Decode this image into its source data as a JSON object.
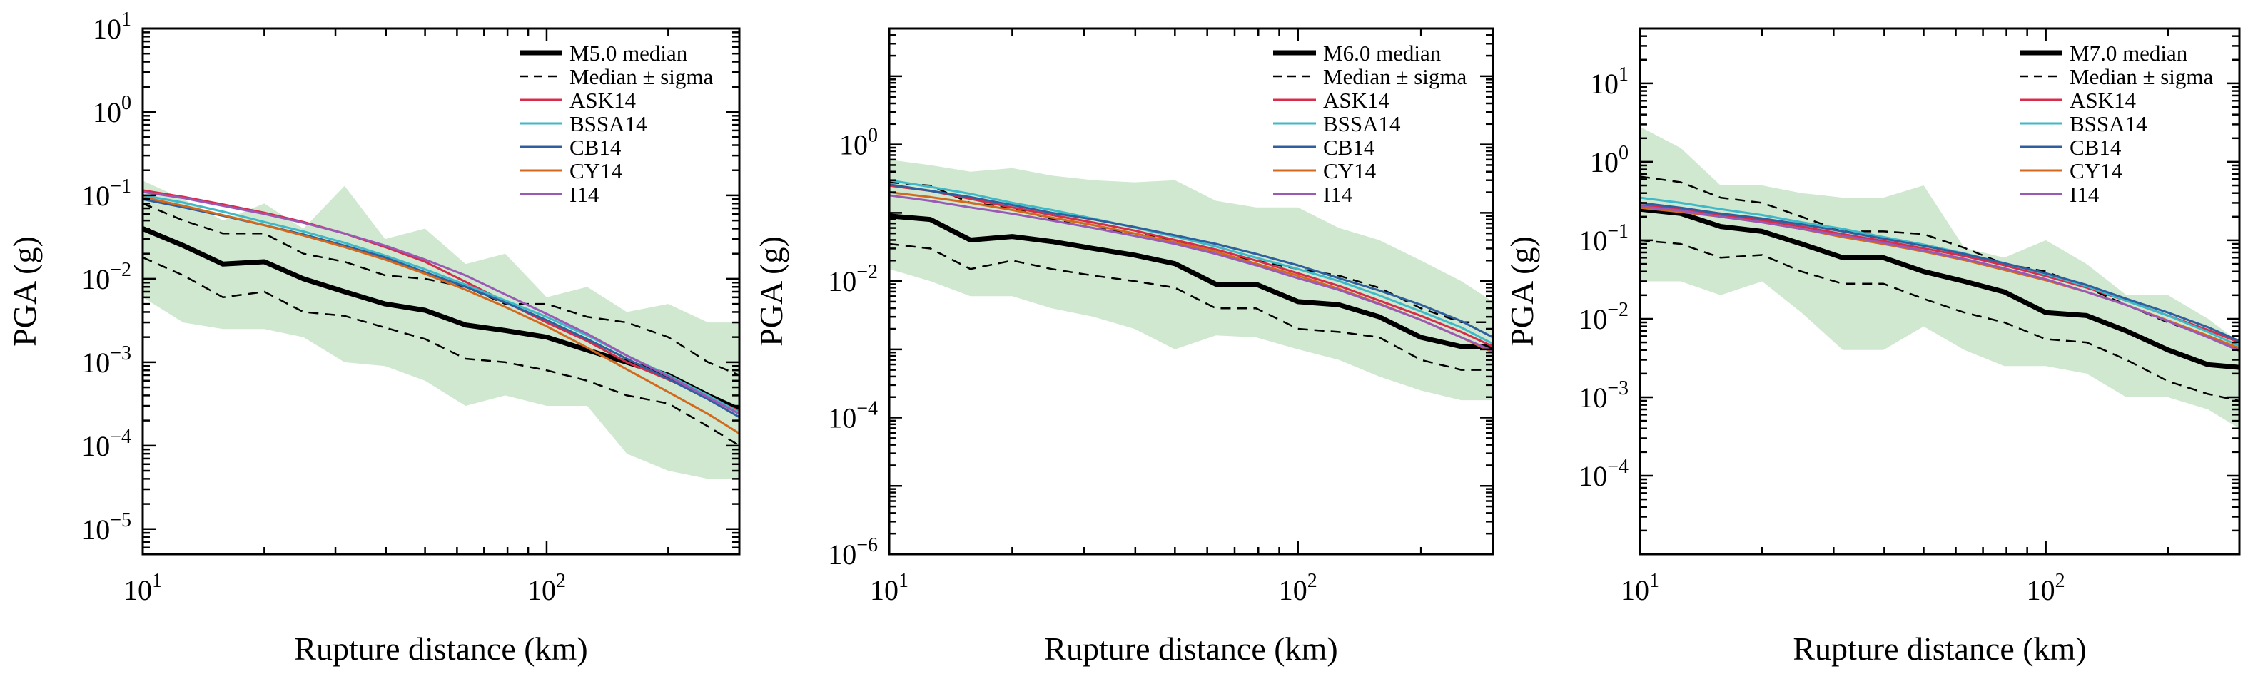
{
  "figure": {
    "colors": {
      "median": "#000000",
      "sigma": "#000000",
      "band": "#cfe8cf",
      "ASK14": "#d62d4a",
      "BSSA14": "#3fb8c8",
      "CB14": "#2f5f9e",
      "CY14": "#d2691e",
      "I14": "#9b59b6"
    }
  },
  "chart_data": [
    {
      "type": "line",
      "xscale": "log",
      "yscale": "log",
      "xlabel": "Rupture distance (km)",
      "ylabel": "PGA (g)",
      "xlim": [
        10,
        300
      ],
      "ylim": [
        5e-06,
        10
      ],
      "xticks": [
        {
          "value": 10,
          "base": "10",
          "exp": "1"
        },
        {
          "value": 100,
          "base": "10",
          "exp": "2"
        }
      ],
      "yticks": [
        {
          "value": 1e-05,
          "base": "10",
          "exp": "−5"
        },
        {
          "value": 0.0001,
          "base": "10",
          "exp": "−4"
        },
        {
          "value": 0.001,
          "base": "10",
          "exp": "−3"
        },
        {
          "value": 0.01,
          "base": "10",
          "exp": "−2"
        },
        {
          "value": 0.1,
          "base": "10",
          "exp": "−1"
        },
        {
          "value": 1,
          "base": "10",
          "exp": "0"
        },
        {
          "value": 10,
          "base": "10",
          "exp": "1"
        }
      ],
      "legend": {
        "position": "top-right",
        "entries": [
          "M5.0 median",
          "Median ± sigma",
          "ASK14",
          "BSSA14",
          "CB14",
          "CY14",
          "I14"
        ]
      },
      "x": [
        10,
        12.6,
        15.8,
        20,
        25,
        31.6,
        39.8,
        50,
        63,
        79,
        100,
        126,
        158,
        200,
        251,
        300
      ],
      "band_upper": [
        0.15,
        0.09,
        0.05,
        0.08,
        0.04,
        0.13,
        0.03,
        0.04,
        0.015,
        0.02,
        0.006,
        0.008,
        0.004,
        0.005,
        0.003,
        0.003
      ],
      "band_lower": [
        0.006,
        0.003,
        0.0025,
        0.0025,
        0.002,
        0.001,
        0.0009,
        0.0006,
        0.0003,
        0.0004,
        0.0003,
        0.0003,
        8e-05,
        5e-05,
        4e-05,
        4e-05
      ],
      "series": [
        {
          "name": "M5.0 median",
          "style": "median",
          "values": [
            0.04,
            0.025,
            0.015,
            0.016,
            0.01,
            0.007,
            0.005,
            0.0042,
            0.0028,
            0.0024,
            0.002,
            0.0014,
            0.001,
            0.0007,
            0.0004,
            0.00027
          ]
        },
        {
          "name": "Median ± sigma",
          "style": "sigma",
          "values": [
            0.08,
            0.05,
            0.035,
            0.035,
            0.02,
            0.016,
            0.011,
            0.01,
            0.008,
            0.005,
            0.005,
            0.0035,
            0.003,
            0.002,
            0.001,
            0.0007
          ]
        },
        {
          "name": "",
          "style": "sigma",
          "values": [
            0.018,
            0.011,
            0.006,
            0.007,
            0.004,
            0.0036,
            0.0026,
            0.0019,
            0.0011,
            0.001,
            0.0008,
            0.0006,
            0.0004,
            0.00032,
            0.00017,
            0.0001
          ]
        },
        {
          "name": "ASK14",
          "style": "model",
          "values": [
            0.115,
            0.096,
            0.078,
            0.062,
            0.048,
            0.035,
            0.024,
            0.016,
            0.0092,
            0.0053,
            0.003,
            0.0018,
            0.001,
            0.00062,
            0.00038,
            0.00026
          ]
        },
        {
          "name": "BSSA14",
          "style": "model",
          "values": [
            0.1,
            0.082,
            0.064,
            0.048,
            0.037,
            0.027,
            0.019,
            0.013,
            0.0085,
            0.0055,
            0.0035,
            0.0021,
            0.0012,
            0.0007,
            0.0004,
            0.00025
          ]
        },
        {
          "name": "CB14",
          "style": "model",
          "values": [
            0.09,
            0.072,
            0.057,
            0.044,
            0.034,
            0.025,
            0.018,
            0.012,
            0.008,
            0.0052,
            0.0032,
            0.0019,
            0.0011,
            0.00063,
            0.00036,
            0.00022
          ]
        },
        {
          "name": "CY14",
          "style": "model",
          "values": [
            0.095,
            0.075,
            0.058,
            0.044,
            0.033,
            0.024,
            0.017,
            0.0115,
            0.0074,
            0.0046,
            0.0027,
            0.0015,
            0.00082,
            0.00044,
            0.00024,
            0.00014
          ]
        },
        {
          "name": "I14",
          "style": "model",
          "values": [
            0.11,
            0.093,
            0.075,
            0.06,
            0.047,
            0.035,
            0.025,
            0.017,
            0.011,
            0.0065,
            0.0038,
            0.0022,
            0.0012,
            0.00068,
            0.00038,
            0.00024
          ]
        }
      ]
    },
    {
      "type": "line",
      "xscale": "log",
      "yscale": "log",
      "xlabel": "Rupture distance (km)",
      "ylabel": "PGA (g)",
      "xlim": [
        10,
        300
      ],
      "ylim": [
        1e-06,
        50
      ],
      "xticks": [
        {
          "value": 10,
          "base": "10",
          "exp": "1"
        },
        {
          "value": 100,
          "base": "10",
          "exp": "2"
        }
      ],
      "yticks": [
        {
          "value": 1e-06,
          "base": "10",
          "exp": "−6"
        },
        {
          "value": 0.0001,
          "base": "10",
          "exp": "−4"
        },
        {
          "value": 0.01,
          "base": "10",
          "exp": "−2"
        },
        {
          "value": 1,
          "base": "10",
          "exp": "0"
        }
      ],
      "legend": {
        "position": "top-right",
        "entries": [
          "M6.0 median",
          "Median ± sigma",
          "ASK14",
          "BSSA14",
          "CB14",
          "CY14",
          "I14"
        ]
      },
      "x": [
        10,
        12.6,
        15.8,
        20,
        25,
        31.6,
        39.8,
        50,
        63,
        79,
        100,
        126,
        158,
        200,
        251,
        300
      ],
      "band_upper": [
        0.6,
        0.5,
        0.4,
        0.45,
        0.35,
        0.3,
        0.28,
        0.3,
        0.15,
        0.12,
        0.12,
        0.06,
        0.04,
        0.02,
        0.01,
        0.005
      ],
      "band_lower": [
        0.015,
        0.01,
        0.006,
        0.006,
        0.004,
        0.003,
        0.002,
        0.001,
        0.0016,
        0.0015,
        0.001,
        0.0007,
        0.0004,
        0.00025,
        0.00018,
        0.00018
      ],
      "series": [
        {
          "name": "M6.0 median",
          "style": "median",
          "values": [
            0.09,
            0.08,
            0.04,
            0.045,
            0.038,
            0.03,
            0.024,
            0.018,
            0.009,
            0.009,
            0.005,
            0.0045,
            0.003,
            0.0015,
            0.0011,
            0.0011
          ]
        },
        {
          "name": "Median ± sigma",
          "style": "sigma",
          "values": [
            0.28,
            0.25,
            0.14,
            0.12,
            0.08,
            0.06,
            0.05,
            0.04,
            0.025,
            0.02,
            0.015,
            0.012,
            0.008,
            0.004,
            0.0025,
            0.0025
          ]
        },
        {
          "name": "",
          "style": "sigma",
          "values": [
            0.035,
            0.03,
            0.015,
            0.02,
            0.015,
            0.012,
            0.01,
            0.008,
            0.004,
            0.004,
            0.002,
            0.0018,
            0.0015,
            0.0007,
            0.0005,
            0.0005
          ]
        },
        {
          "name": "ASK14",
          "style": "model",
          "values": [
            0.25,
            0.21,
            0.16,
            0.12,
            0.093,
            0.072,
            0.055,
            0.04,
            0.029,
            0.02,
            0.013,
            0.0085,
            0.0052,
            0.0031,
            0.0018,
            0.0011
          ]
        },
        {
          "name": "BSSA14",
          "style": "model",
          "values": [
            0.3,
            0.24,
            0.19,
            0.14,
            0.11,
            0.082,
            0.061,
            0.045,
            0.032,
            0.022,
            0.015,
            0.01,
            0.0062,
            0.0036,
            0.0021,
            0.0012
          ]
        },
        {
          "name": "CB14",
          "style": "model",
          "values": [
            0.26,
            0.21,
            0.17,
            0.13,
            0.1,
            0.08,
            0.062,
            0.047,
            0.035,
            0.025,
            0.017,
            0.011,
            0.0073,
            0.0045,
            0.0026,
            0.0015
          ]
        },
        {
          "name": "CY14",
          "style": "model",
          "values": [
            0.2,
            0.17,
            0.14,
            0.11,
            0.085,
            0.066,
            0.05,
            0.037,
            0.027,
            0.018,
            0.012,
            0.0077,
            0.0047,
            0.0027,
            0.0015,
            0.0009
          ]
        },
        {
          "name": "I14",
          "style": "model",
          "values": [
            0.18,
            0.15,
            0.12,
            0.097,
            0.077,
            0.06,
            0.046,
            0.035,
            0.025,
            0.017,
            0.011,
            0.0074,
            0.0046,
            0.0027,
            0.0015,
            0.00095
          ]
        }
      ]
    },
    {
      "type": "line",
      "xscale": "log",
      "yscale": "log",
      "xlabel": "Rupture distance (km)",
      "ylabel": "PGA (g)",
      "xlim": [
        10,
        300
      ],
      "ylim": [
        1e-05,
        50
      ],
      "xticks": [
        {
          "value": 10,
          "base": "10",
          "exp": "1"
        },
        {
          "value": 100,
          "base": "10",
          "exp": "2"
        }
      ],
      "yticks": [
        {
          "value": 0.0001,
          "base": "10",
          "exp": "−4"
        },
        {
          "value": 0.001,
          "base": "10",
          "exp": "−3"
        },
        {
          "value": 0.01,
          "base": "10",
          "exp": "−2"
        },
        {
          "value": 0.1,
          "base": "10",
          "exp": "−1"
        },
        {
          "value": 1,
          "base": "10",
          "exp": "0"
        },
        {
          "value": 10,
          "base": "10",
          "exp": "1"
        }
      ],
      "legend": {
        "position": "top-right",
        "entries": [
          "M7.0 median",
          "Median ± sigma",
          "ASK14",
          "BSSA14",
          "CB14",
          "CY14",
          "I14"
        ]
      },
      "x": [
        10,
        12.6,
        15.8,
        20,
        25,
        31.6,
        39.8,
        50,
        63,
        79,
        100,
        126,
        158,
        200,
        251,
        300
      ],
      "band_upper": [
        2.8,
        1.5,
        0.5,
        0.5,
        0.4,
        0.35,
        0.35,
        0.5,
        0.08,
        0.06,
        0.1,
        0.05,
        0.02,
        0.02,
        0.01,
        0.005
      ],
      "band_lower": [
        0.03,
        0.03,
        0.02,
        0.03,
        0.012,
        0.004,
        0.004,
        0.008,
        0.004,
        0.0025,
        0.0025,
        0.002,
        0.001,
        0.001,
        0.0007,
        0.0004
      ],
      "series": [
        {
          "name": "M7.0 median",
          "style": "median",
          "values": [
            0.25,
            0.22,
            0.15,
            0.13,
            0.09,
            0.06,
            0.06,
            0.04,
            0.03,
            0.022,
            0.012,
            0.011,
            0.007,
            0.004,
            0.0026,
            0.0024
          ]
        },
        {
          "name": "Median ± sigma",
          "style": "sigma",
          "values": [
            0.65,
            0.55,
            0.35,
            0.3,
            0.2,
            0.13,
            0.13,
            0.12,
            0.08,
            0.05,
            0.04,
            0.025,
            0.015,
            0.009,
            0.006,
            0.004
          ]
        },
        {
          "name": "",
          "style": "sigma",
          "values": [
            0.1,
            0.09,
            0.06,
            0.065,
            0.04,
            0.028,
            0.028,
            0.018,
            0.012,
            0.009,
            0.0055,
            0.005,
            0.003,
            0.0016,
            0.0011,
            0.0009
          ]
        },
        {
          "name": "ASK14",
          "style": "model",
          "values": [
            0.28,
            0.25,
            0.21,
            0.18,
            0.15,
            0.12,
            0.098,
            0.079,
            0.063,
            0.048,
            0.035,
            0.025,
            0.017,
            0.011,
            0.0072,
            0.005
          ]
        },
        {
          "name": "BSSA14",
          "style": "model",
          "values": [
            0.35,
            0.3,
            0.25,
            0.21,
            0.17,
            0.14,
            0.11,
            0.088,
            0.068,
            0.051,
            0.037,
            0.026,
            0.017,
            0.011,
            0.0068,
            0.0045
          ]
        },
        {
          "name": "CB14",
          "style": "model",
          "values": [
            0.3,
            0.26,
            0.22,
            0.19,
            0.16,
            0.13,
            0.105,
            0.085,
            0.067,
            0.051,
            0.038,
            0.027,
            0.018,
            0.012,
            0.0078,
            0.0052
          ]
        },
        {
          "name": "CY14",
          "style": "model",
          "values": [
            0.26,
            0.23,
            0.2,
            0.17,
            0.14,
            0.11,
            0.09,
            0.072,
            0.056,
            0.042,
            0.031,
            0.022,
            0.015,
            0.0095,
            0.0061,
            0.0042
          ]
        },
        {
          "name": "I14",
          "style": "model",
          "values": [
            0.27,
            0.24,
            0.2,
            0.17,
            0.14,
            0.115,
            0.093,
            0.074,
            0.058,
            0.044,
            0.032,
            0.022,
            0.015,
            0.0093,
            0.0058,
            0.0039
          ]
        }
      ]
    }
  ]
}
